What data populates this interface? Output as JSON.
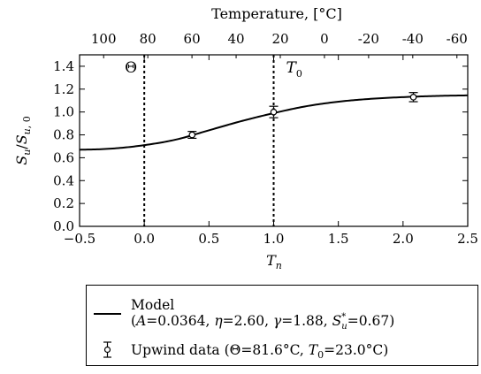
{
  "chart_data": {
    "type": "scatter",
    "top_axis": {
      "label": "Temperature, [°C]",
      "ticks": [
        100,
        80,
        60,
        40,
        20,
        0,
        -20,
        -40,
        -60
      ],
      "tick_labels": [
        "100",
        "80",
        "60",
        "40",
        "20",
        "0",
        "-20",
        "-40",
        "-60"
      ],
      "theta_c": 81.6,
      "t0_c": 23.0
    },
    "x_axis": {
      "label": "Tn",
      "range": [
        -0.5,
        2.5
      ],
      "ticks": [
        -0.5,
        0.0,
        0.5,
        1.0,
        1.5,
        2.0,
        2.5
      ],
      "tick_labels": [
        "−0.5",
        "0.0",
        "0.5",
        "1.0",
        "1.5",
        "2.0",
        "2.5"
      ]
    },
    "y_axis": {
      "label": "Su/Su,0",
      "range": [
        0.0,
        1.5
      ],
      "ticks": [
        0.0,
        0.2,
        0.4,
        0.6,
        0.8,
        1.0,
        1.2,
        1.4
      ],
      "tick_labels": [
        "0.0",
        "0.2",
        "0.4",
        "0.6",
        "0.8",
        "1.0",
        "1.2",
        "1.4"
      ]
    },
    "vlines": [
      {
        "x": 0.0,
        "label": "Θ"
      },
      {
        "x": 1.0,
        "label": "T0"
      }
    ],
    "series": [
      {
        "name": "Model",
        "kind": "line",
        "params": {
          "A": 0.0364,
          "eta": 2.6,
          "gamma": 1.88,
          "Su_star": 0.67
        },
        "x": [
          -0.5,
          -0.25,
          0.0,
          0.25,
          0.5,
          0.75,
          1.0,
          1.25,
          1.5,
          1.75,
          2.0,
          2.25,
          2.5
        ],
        "y": [
          0.67,
          0.68,
          0.71,
          0.76,
          0.84,
          0.92,
          0.99,
          1.05,
          1.09,
          1.115,
          1.13,
          1.14,
          1.145
        ]
      },
      {
        "name": "Upwind data",
        "kind": "errorbar",
        "x": [
          0.37,
          1.0,
          2.08
        ],
        "y": [
          0.8,
          1.0,
          1.13
        ],
        "yerr": [
          0.03,
          0.05,
          0.04
        ]
      }
    ],
    "legend": {
      "position": "below",
      "entries": [
        {
          "line1": "Model",
          "line2": "(A=0.0364, η=2.60, γ=1.88, S*u=0.67)"
        },
        {
          "line1": "Upwind data (Θ=81.6°C, T0=23.0°C)"
        }
      ]
    },
    "grid": false
  }
}
